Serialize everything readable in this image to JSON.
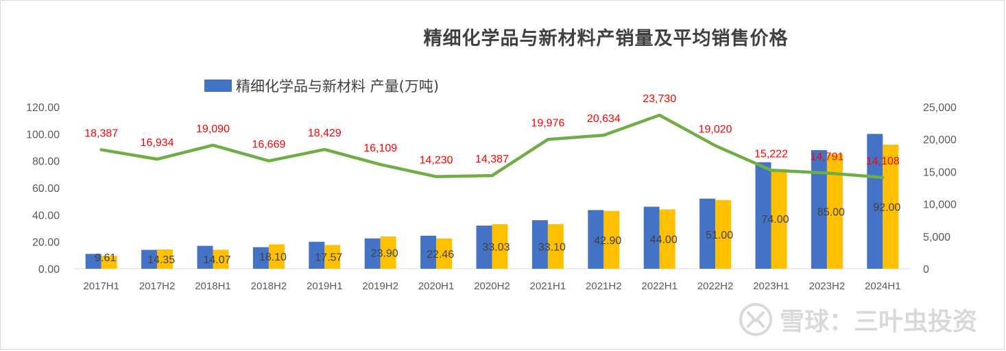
{
  "chart_data": {
    "type": "bar",
    "title": "精细化学品与新材料产销量及平均销售价格",
    "categories": [
      "2017H1",
      "2017H2",
      "2018H1",
      "2018H2",
      "2019H1",
      "2019H2",
      "2020H1",
      "2020H2",
      "2021H1",
      "2021H2",
      "2022H1",
      "2022H2",
      "2023H1",
      "2023H2",
      "2024H1"
    ],
    "series": [
      {
        "name": "精细化学品与新材料 产量(万吨)",
        "kind": "bar",
        "axis": "left",
        "color": "#4472c4",
        "values": [
          11,
          14,
          17,
          16,
          20,
          22.5,
          24.5,
          32,
          36,
          43.5,
          46,
          52,
          79,
          88,
          100
        ]
      },
      {
        "kind": "bar",
        "axis": "left",
        "color": "#ffc000",
        "values": [
          9.61,
          14.35,
          14.07,
          18.1,
          17.57,
          23.9,
          22.46,
          33.03,
          33.1,
          42.9,
          44.0,
          51.0,
          74.0,
          85.0,
          92.0
        ],
        "labels": [
          "9.61",
          "14.35",
          "14.07",
          "18.10",
          "17.57",
          "23.90",
          "22.46",
          "33.03",
          "33.10",
          "42.90",
          "44.00",
          "51.00",
          "74.00",
          "85.00",
          "92.00"
        ]
      },
      {
        "kind": "line",
        "axis": "right",
        "color": "#70ad47",
        "values": [
          18387,
          16934,
          19090,
          16669,
          18429,
          16109,
          14230,
          14387,
          19976,
          20634,
          23730,
          19020,
          15222,
          14791,
          14108
        ],
        "labels": [
          "18,387",
          "16,934",
          "19,090",
          "16,669",
          "18,429",
          "16,109",
          "14,230",
          "14,387",
          "19,976",
          "20,634",
          "23,730",
          "19,020",
          "15,222",
          "14,791",
          "14,108"
        ]
      }
    ],
    "ylim": [
      0,
      120
    ],
    "y_ticks": [
      "0.00",
      "20.00",
      "40.00",
      "60.00",
      "80.00",
      "100.00",
      "120.00"
    ],
    "y2lim": [
      0,
      25000
    ],
    "y2_ticks": [
      "0",
      "5,000",
      "10,000",
      "15,000",
      "20,000",
      "25,000"
    ],
    "legend_position": "top-left",
    "grid": false,
    "line_label_color": "#ff0000",
    "bar_label_color": "#404040",
    "axis_text_color": "#595959"
  },
  "watermark": {
    "text": "雪球：三叶虫投资"
  }
}
